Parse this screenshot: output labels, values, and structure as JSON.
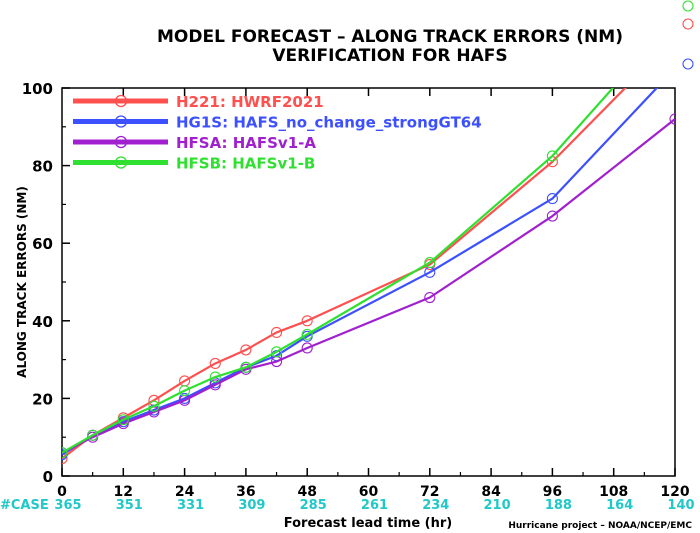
{
  "chart_data": {
    "type": "line",
    "title": "MODEL FORECAST – ALONG TRACK ERRORS (NM)",
    "subtitle": "VERIFICATION FOR HAFS",
    "xlabel": "Forecast lead time (hr)",
    "ylabel": "ALONG TRACK ERRORS (NM)",
    "xlim": [
      0,
      120
    ],
    "ylim": [
      0,
      100
    ],
    "x_ticks": [
      "0",
      "12",
      "24",
      "36",
      "48",
      "60",
      "72",
      "84",
      "96",
      "108",
      "120"
    ],
    "y_ticks": [
      "0",
      "20",
      "40",
      "60",
      "80",
      "100"
    ],
    "grid": false,
    "legend_position": "top-left",
    "cases_label": "#CASE",
    "cases": [
      "365",
      "351",
      "331",
      "309",
      "285",
      "261",
      "234",
      "210",
      "188",
      "164",
      "140"
    ],
    "credit": "Hurricane project – NOAA/NCEP/EMC",
    "series": [
      {
        "name": "H221: HWRF2021",
        "color": "#ff5050",
        "x": [
          0,
          6,
          12,
          18,
          24,
          30,
          36,
          42,
          48,
          72,
          96,
          120
        ],
        "y": [
          4.5,
          10.5,
          15,
          19.5,
          24.5,
          29,
          32.5,
          37,
          40,
          54.5,
          81,
          113
        ]
      },
      {
        "name": "HG1S: HAFS_no_change_strongGT64",
        "color": "#3c50ff",
        "x": [
          0,
          6,
          12,
          18,
          24,
          30,
          36,
          42,
          48,
          72,
          96,
          120
        ],
        "y": [
          5.5,
          10.5,
          14,
          17,
          20,
          24,
          28,
          31,
          36,
          52.5,
          71.5,
          105
        ]
      },
      {
        "name": "HFSA: HAFSv1-A",
        "color": "#a020d0",
        "x": [
          0,
          6,
          12,
          18,
          24,
          30,
          36,
          42,
          48,
          72,
          96,
          120
        ],
        "y": [
          6,
          10,
          13.5,
          16.5,
          19.5,
          23.5,
          27.5,
          29.5,
          33,
          46,
          67,
          92
        ]
      },
      {
        "name": "HFSB: HAFSv1-B",
        "color": "#30e030",
        "x": [
          0,
          6,
          12,
          18,
          24,
          30,
          36,
          42,
          48,
          72,
          96,
          120
        ],
        "y": [
          6,
          10.5,
          14.5,
          18,
          22,
          25.5,
          28,
          32,
          36.5,
          55,
          82.5,
          118
        ]
      }
    ]
  }
}
